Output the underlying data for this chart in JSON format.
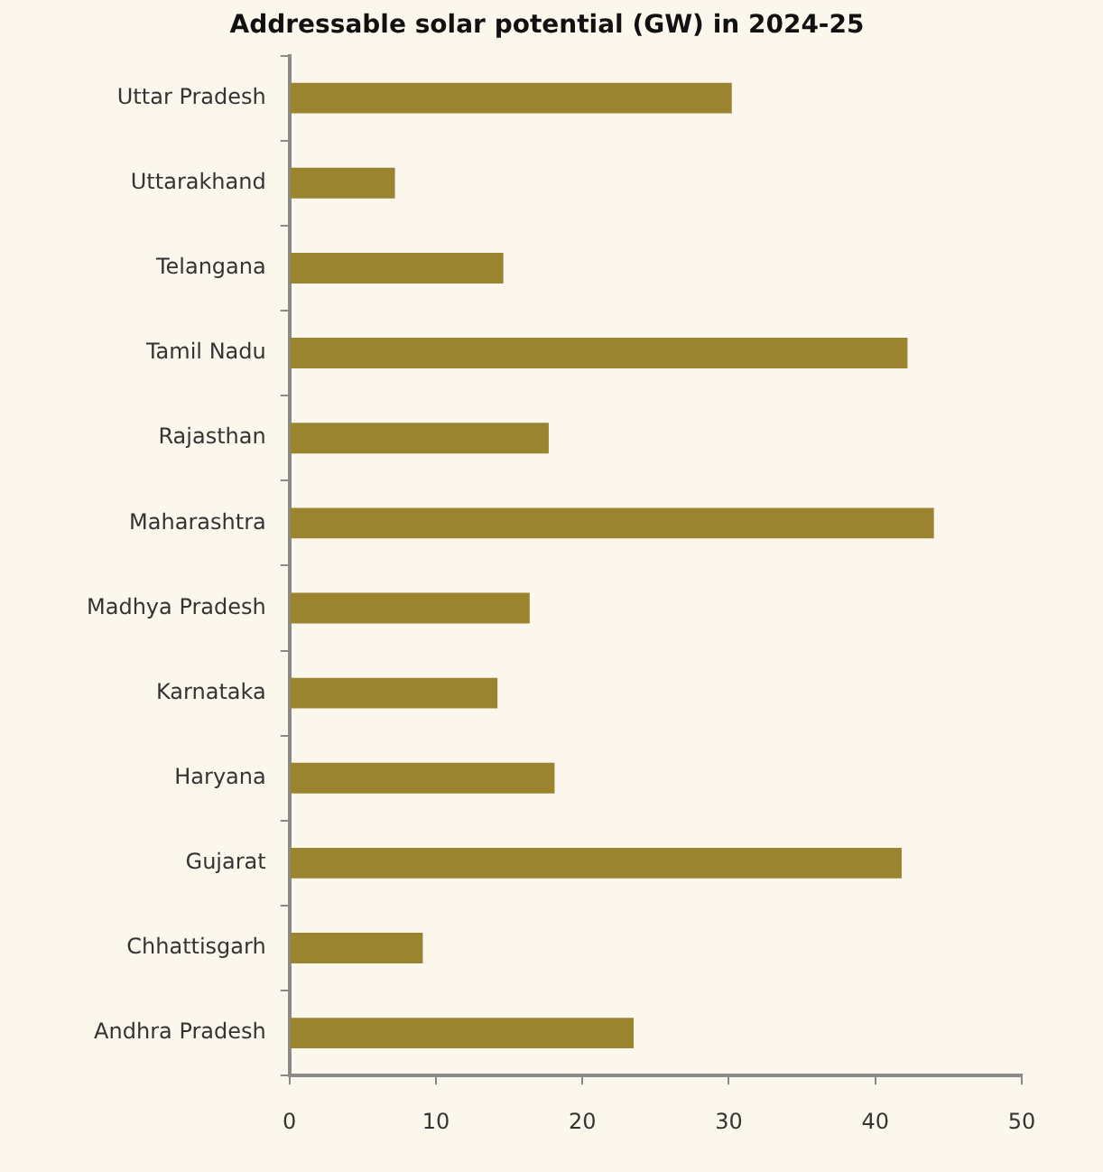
{
  "chart_data": {
    "type": "bar",
    "orientation": "horizontal",
    "title": "Addressable solar potential (GW) in 2024-25",
    "categories": [
      "Uttar Pradesh",
      "Uttarakhand",
      "Telangana",
      "Tamil Nadu",
      "Rajasthan",
      "Maharashtra",
      "Madhya Pradesh",
      "Karnataka",
      "Haryana",
      "Gujarat",
      "Chhattisgarh",
      "Andhra Pradesh"
    ],
    "values": [
      30.2,
      7.2,
      14.6,
      42.2,
      17.7,
      44.0,
      16.4,
      14.2,
      18.1,
      41.8,
      9.1,
      23.5
    ],
    "color": "#9a8430",
    "xlim": [
      0,
      50
    ],
    "xticks": [
      0,
      10,
      20,
      30,
      40,
      50
    ],
    "grid": false,
    "legend": false
  }
}
